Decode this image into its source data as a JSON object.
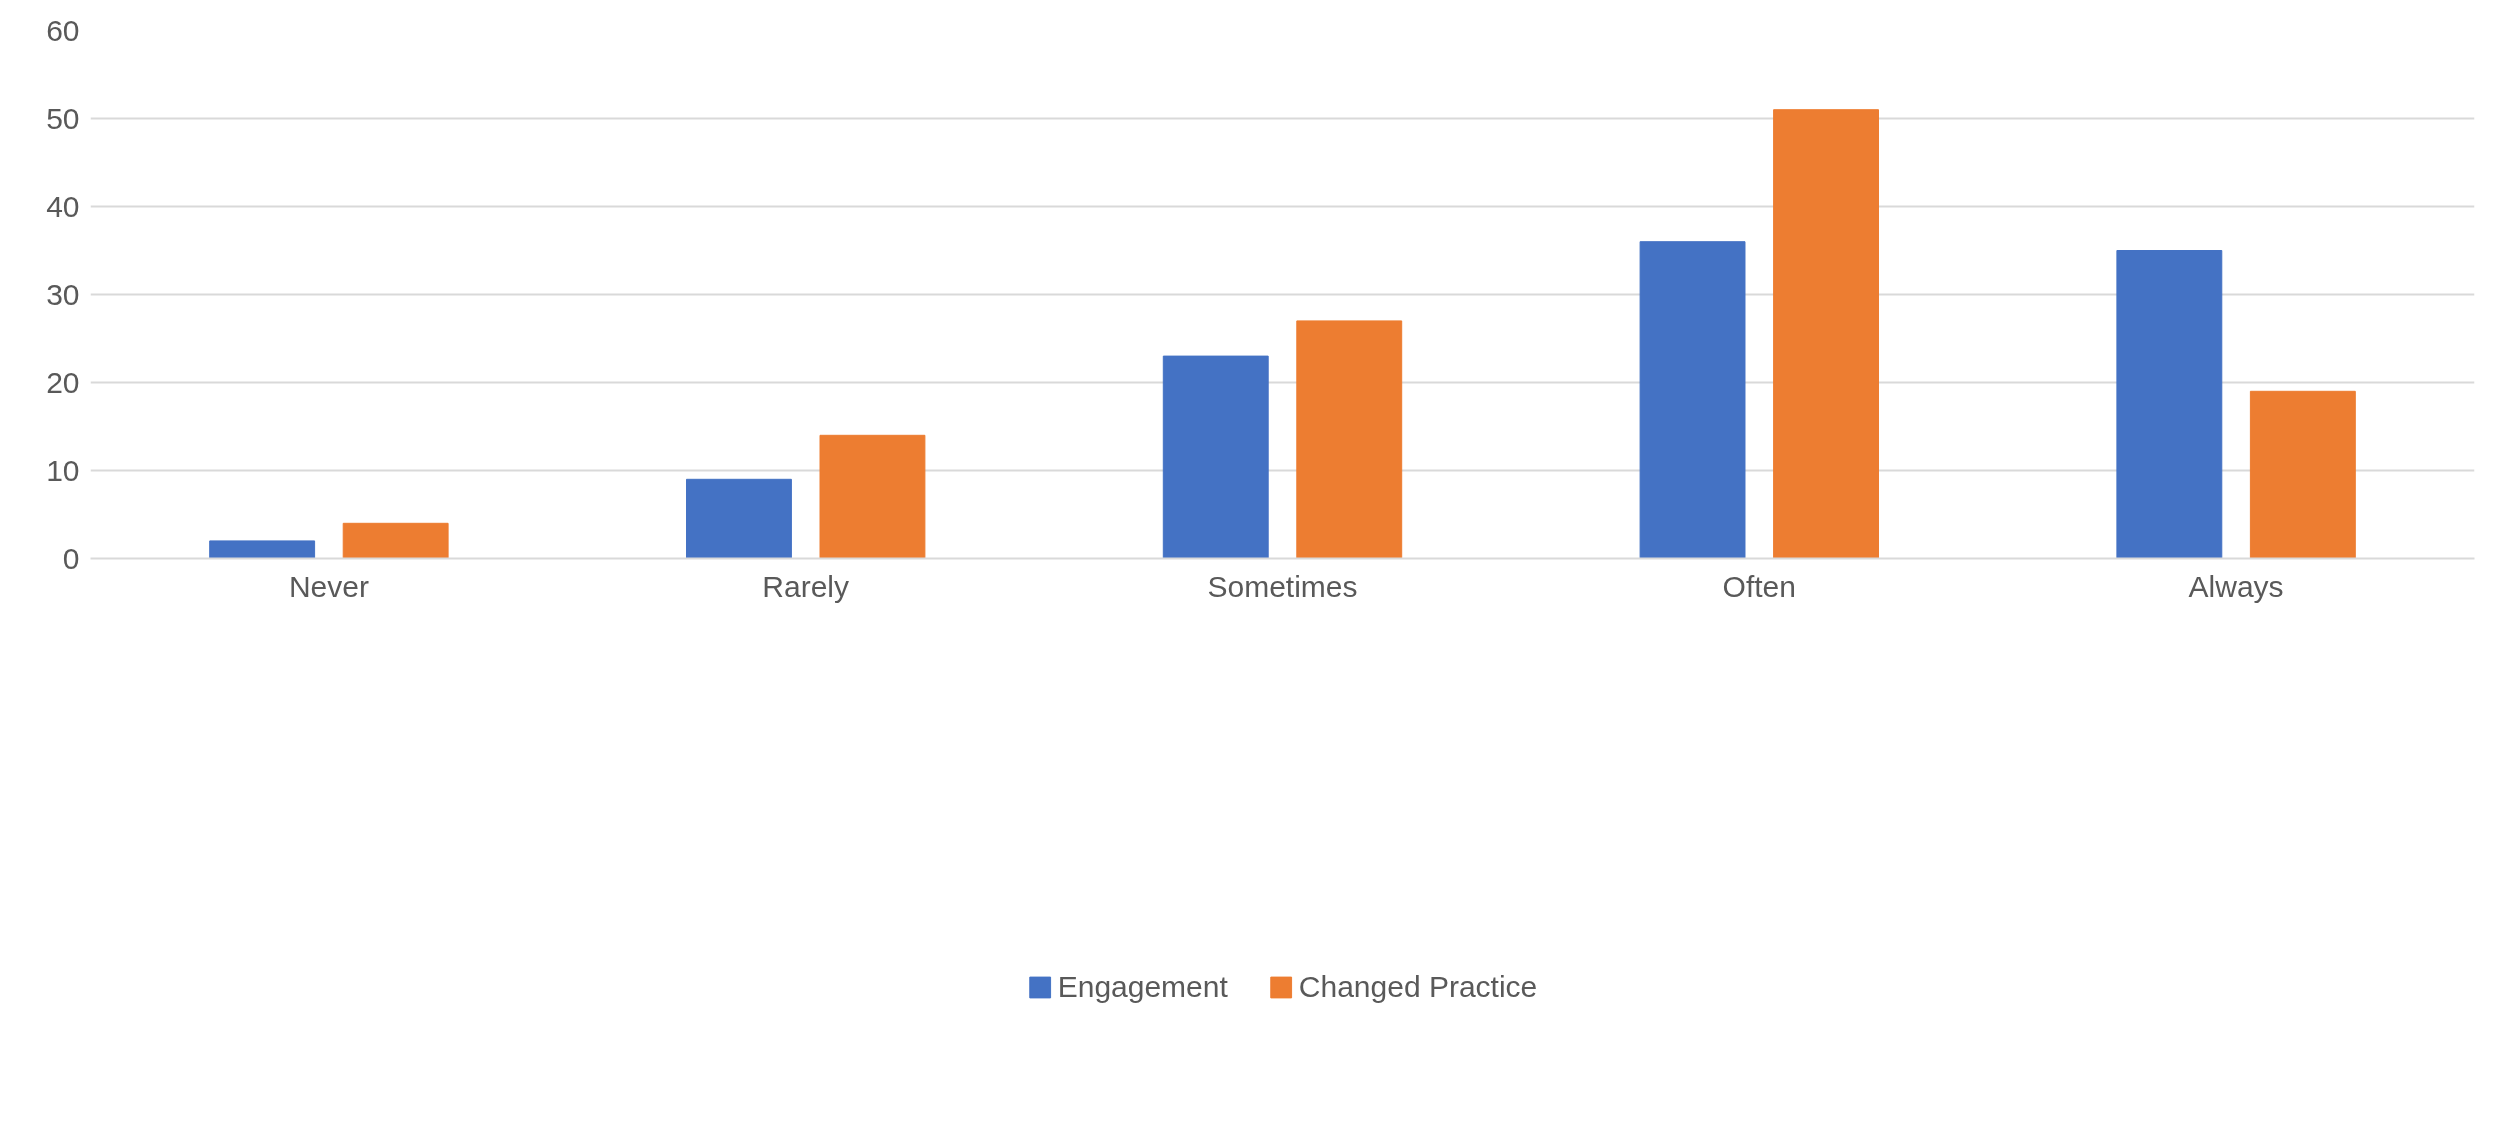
{
  "chart_data": {
    "type": "bar",
    "categories": [
      "Never",
      "Rarely",
      "Sometimes",
      "Often",
      "Always"
    ],
    "series": [
      {
        "name": "Engagement",
        "color": "#4472c4",
        "values": [
          2,
          9,
          23,
          36,
          35
        ]
      },
      {
        "name": "Changed Practice",
        "color": "#ed7d31",
        "values": [
          4,
          14,
          27,
          51,
          19
        ]
      }
    ],
    "ylim": [
      0,
      60
    ],
    "yticks": [
      0,
      10,
      20,
      30,
      40,
      50,
      60
    ],
    "grid": "y",
    "legend": "bottom"
  }
}
